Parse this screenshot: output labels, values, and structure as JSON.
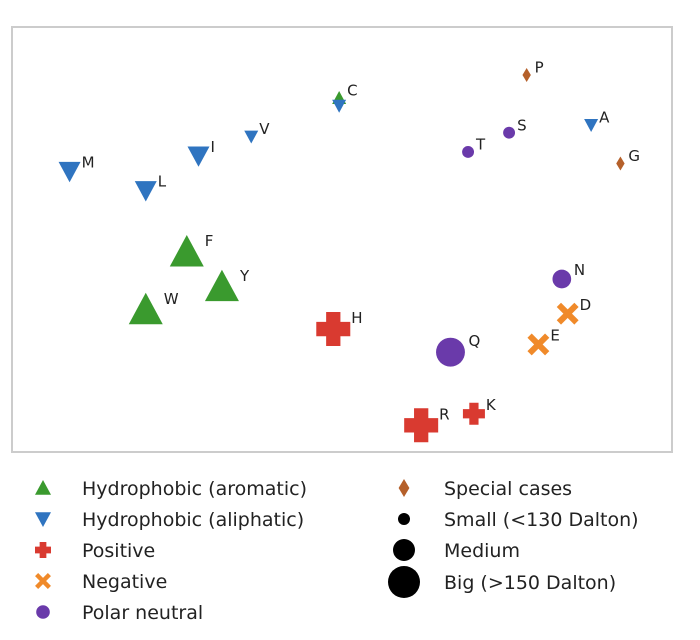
{
  "chart_data": {
    "type": "scatter",
    "title": "",
    "xlabel": "",
    "ylabel": "",
    "grid": false,
    "axis_ticks": false,
    "legend_position": "bottom",
    "categories": [
      {
        "key": "aromatic",
        "label": "Hydrophobic (aromatic)",
        "marker": "triangle-up",
        "color": "#3a9a2e"
      },
      {
        "key": "aliphatic",
        "label": "Hydrophobic (aliphatic)",
        "marker": "triangle-down",
        "color": "#2f74c0"
      },
      {
        "key": "positive",
        "label": "Positive",
        "marker": "plus",
        "color": "#d93a30"
      },
      {
        "key": "negative",
        "label": "Negative",
        "marker": "cross",
        "color": "#f08a2a"
      },
      {
        "key": "polar",
        "label": "Polar neutral",
        "marker": "circle",
        "color": "#6a3aaa"
      },
      {
        "key": "special",
        "label": "Special cases",
        "marker": "diamond",
        "color": "#b5602a"
      }
    ],
    "sizes": [
      {
        "key": "small",
        "label": "Small (<130 Dalton)"
      },
      {
        "key": "medium",
        "label": "Medium"
      },
      {
        "key": "big",
        "label": "Big (>150 Dalton)"
      }
    ],
    "points": [
      {
        "label": "C",
        "category": "aromatic",
        "size": "small",
        "x": 0.49,
        "y": 0.13
      },
      {
        "label": "C",
        "category": "aliphatic",
        "size": "small",
        "x": 0.49,
        "y": 0.15
      },
      {
        "label": "P",
        "category": "special",
        "size": "small",
        "x": 0.81,
        "y": 0.07
      },
      {
        "label": "G",
        "category": "special",
        "size": "small",
        "x": 0.97,
        "y": 0.3
      },
      {
        "label": "A",
        "category": "aliphatic",
        "size": "small",
        "x": 0.92,
        "y": 0.2
      },
      {
        "label": "S",
        "category": "polar",
        "size": "small",
        "x": 0.78,
        "y": 0.22
      },
      {
        "label": "T",
        "category": "polar",
        "size": "small",
        "x": 0.71,
        "y": 0.27
      },
      {
        "label": "V",
        "category": "aliphatic",
        "size": "small",
        "x": 0.34,
        "y": 0.23
      },
      {
        "label": "I",
        "category": "aliphatic",
        "size": "medium",
        "x": 0.25,
        "y": 0.28
      },
      {
        "label": "M",
        "category": "aliphatic",
        "size": "medium",
        "x": 0.03,
        "y": 0.32
      },
      {
        "label": "L",
        "category": "aliphatic",
        "size": "medium",
        "x": 0.16,
        "y": 0.37
      },
      {
        "label": "F",
        "category": "aromatic",
        "size": "big",
        "x": 0.23,
        "y": 0.53
      },
      {
        "label": "Y",
        "category": "aromatic",
        "size": "big",
        "x": 0.29,
        "y": 0.62
      },
      {
        "label": "W",
        "category": "aromatic",
        "size": "big",
        "x": 0.16,
        "y": 0.68
      },
      {
        "label": "N",
        "category": "polar",
        "size": "medium",
        "x": 0.87,
        "y": 0.6
      },
      {
        "label": "D",
        "category": "negative",
        "size": "medium",
        "x": 0.88,
        "y": 0.69
      },
      {
        "label": "E",
        "category": "negative",
        "size": "medium",
        "x": 0.83,
        "y": 0.77
      },
      {
        "label": "Q",
        "category": "polar",
        "size": "big",
        "x": 0.68,
        "y": 0.79
      },
      {
        "label": "H",
        "category": "positive",
        "size": "big",
        "x": 0.48,
        "y": 0.73
      },
      {
        "label": "K",
        "category": "positive",
        "size": "medium",
        "x": 0.72,
        "y": 0.95
      },
      {
        "label": "R",
        "category": "positive",
        "size": "big",
        "x": 0.63,
        "y": 0.98
      }
    ]
  }
}
